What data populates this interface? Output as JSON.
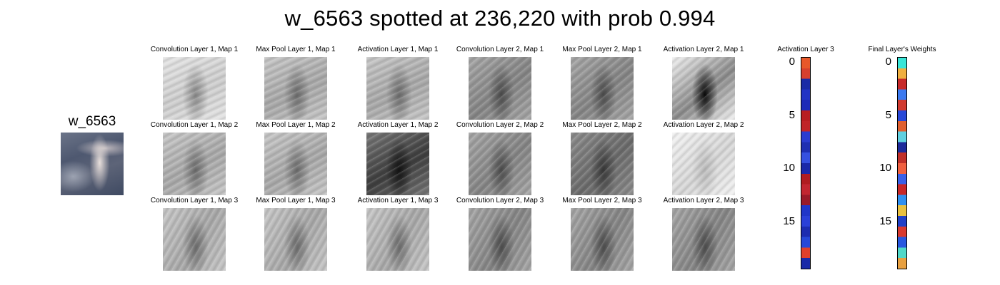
{
  "figure": {
    "title": "w_6563 spotted at 236,220 with prob 0.994",
    "input_label": "w_6563"
  },
  "grid": {
    "rows": [
      {
        "cells": [
          {
            "label": "Convolution Layer 1, Map 1",
            "tone": "light",
            "angle": "155deg"
          },
          {
            "label": "Max Pool Layer 1, Map 1",
            "tone": "mid-light",
            "angle": "155deg"
          },
          {
            "label": "Activation Layer 1, Map 1",
            "tone": "mid-light",
            "angle": "155deg"
          },
          {
            "label": "Convolution Layer 2, Map 1",
            "tone": "mid",
            "angle": "140deg"
          },
          {
            "label": "Max Pool Layer 2, Map 1",
            "tone": "mid",
            "angle": "140deg"
          },
          {
            "label": "Activation Layer 2, Map 1",
            "tone": "contrast",
            "angle": "140deg"
          }
        ]
      },
      {
        "cells": [
          {
            "label": "Convolution Layer 1, Map 2",
            "tone": "mid-light",
            "angle": "150deg"
          },
          {
            "label": "Max Pool Layer 1, Map 2",
            "tone": "mid-light",
            "angle": "150deg"
          },
          {
            "label": "Activation Layer 1, Map 2",
            "tone": "dark",
            "angle": "150deg"
          },
          {
            "label": "Convolution Layer 2, Map 2",
            "tone": "mid",
            "angle": "135deg"
          },
          {
            "label": "Max Pool Layer 2, Map 2",
            "tone": "mid-dark",
            "angle": "135deg"
          },
          {
            "label": "Activation Layer 2, Map 2",
            "tone": "very-light",
            "angle": "135deg"
          }
        ]
      },
      {
        "cells": [
          {
            "label": "Convolution Layer 1, Map 3",
            "tone": "mid-light",
            "angle": "120deg"
          },
          {
            "label": "Max Pool Layer 1, Map 3",
            "tone": "mid-light",
            "angle": "120deg"
          },
          {
            "label": "Activation Layer 1, Map 3",
            "tone": "mid-light",
            "angle": "120deg"
          },
          {
            "label": "Convolution Layer 2, Map 3",
            "tone": "mid",
            "angle": "120deg"
          },
          {
            "label": "Max Pool Layer 2, Map 3",
            "tone": "mid",
            "angle": "120deg"
          },
          {
            "label": "Activation Layer 2, Map 3",
            "tone": "mid",
            "angle": "120deg"
          }
        ]
      }
    ]
  },
  "activation_layer_3": {
    "title": "Activation Layer 3",
    "ticks": [
      "0",
      "5",
      "10",
      "15"
    ],
    "colors": [
      "#e8582a",
      "#d6402e",
      "#1a2aa6",
      "#2233c4",
      "#1d2ab8",
      "#b81e22",
      "#c02428",
      "#2a3cd0",
      "#1e2fb2",
      "#3550e0",
      "#1a28a8",
      "#b01c20",
      "#c22630",
      "#9a1a28",
      "#2036c8",
      "#2a40d8",
      "#1c2cb0",
      "#2648d8",
      "#e0402a",
      "#1a2aa8"
    ]
  },
  "final_weights": {
    "title": "Final Layer's Weights",
    "ticks": [
      "0",
      "5",
      "10",
      "15"
    ],
    "colors": [
      "#38e6d8",
      "#f0b040",
      "#c82a2a",
      "#3c7af0",
      "#d03a30",
      "#2848d8",
      "#e06030",
      "#60d0e0",
      "#1c2a9a",
      "#c0302a",
      "#f06040",
      "#3a60e8",
      "#c82828",
      "#3090f0",
      "#e8c040",
      "#2040c8",
      "#d83a30",
      "#2858e0",
      "#50d8c8",
      "#e8a040"
    ]
  }
}
